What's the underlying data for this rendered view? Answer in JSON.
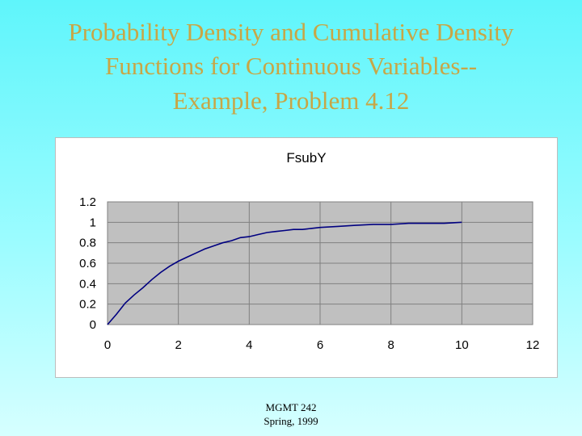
{
  "slide": {
    "title_line1": "Probability Density and Cumulative Density",
    "title_line2": "Functions for Continuous Variables--",
    "subtitle": "Example, Problem 4.12",
    "footer_line1": "MGMT 242",
    "footer_line2": "Spring, 1999"
  },
  "colors": {
    "title": "#c8a646",
    "plot_area": "#c0c0c0",
    "series_line": "#000080",
    "background_top": "#5ff5fb"
  },
  "chart_data": {
    "type": "line",
    "title": "FsubY",
    "xlabel": "",
    "ylabel": "",
    "xlim": [
      0,
      12
    ],
    "ylim": [
      0,
      1.2
    ],
    "x_ticks": [
      "0",
      "2",
      "4",
      "6",
      "8",
      "10",
      "12"
    ],
    "y_ticks": [
      "0",
      "0.2",
      "0.4",
      "0.6",
      "0.8",
      "1",
      "1.2"
    ],
    "grid": true,
    "legend": "none",
    "series": [
      {
        "x": [
          0,
          0.25,
          0.5,
          0.75,
          1.0,
          1.25,
          1.5,
          1.75,
          2.0,
          2.25,
          2.5,
          2.75,
          3.0,
          3.25,
          3.5,
          3.75,
          4.0,
          4.25,
          4.5,
          4.75,
          5.0,
          5.25,
          5.5,
          5.75,
          6.0,
          6.5,
          7.0,
          7.5,
          8.0,
          8.5,
          9.0,
          9.5,
          10.0
        ],
        "y": [
          0,
          0.1,
          0.21,
          0.29,
          0.36,
          0.44,
          0.51,
          0.57,
          0.62,
          0.66,
          0.7,
          0.74,
          0.77,
          0.8,
          0.82,
          0.85,
          0.86,
          0.88,
          0.9,
          0.91,
          0.92,
          0.93,
          0.93,
          0.94,
          0.95,
          0.96,
          0.97,
          0.98,
          0.98,
          0.99,
          0.99,
          0.99,
          1.0
        ]
      }
    ]
  }
}
